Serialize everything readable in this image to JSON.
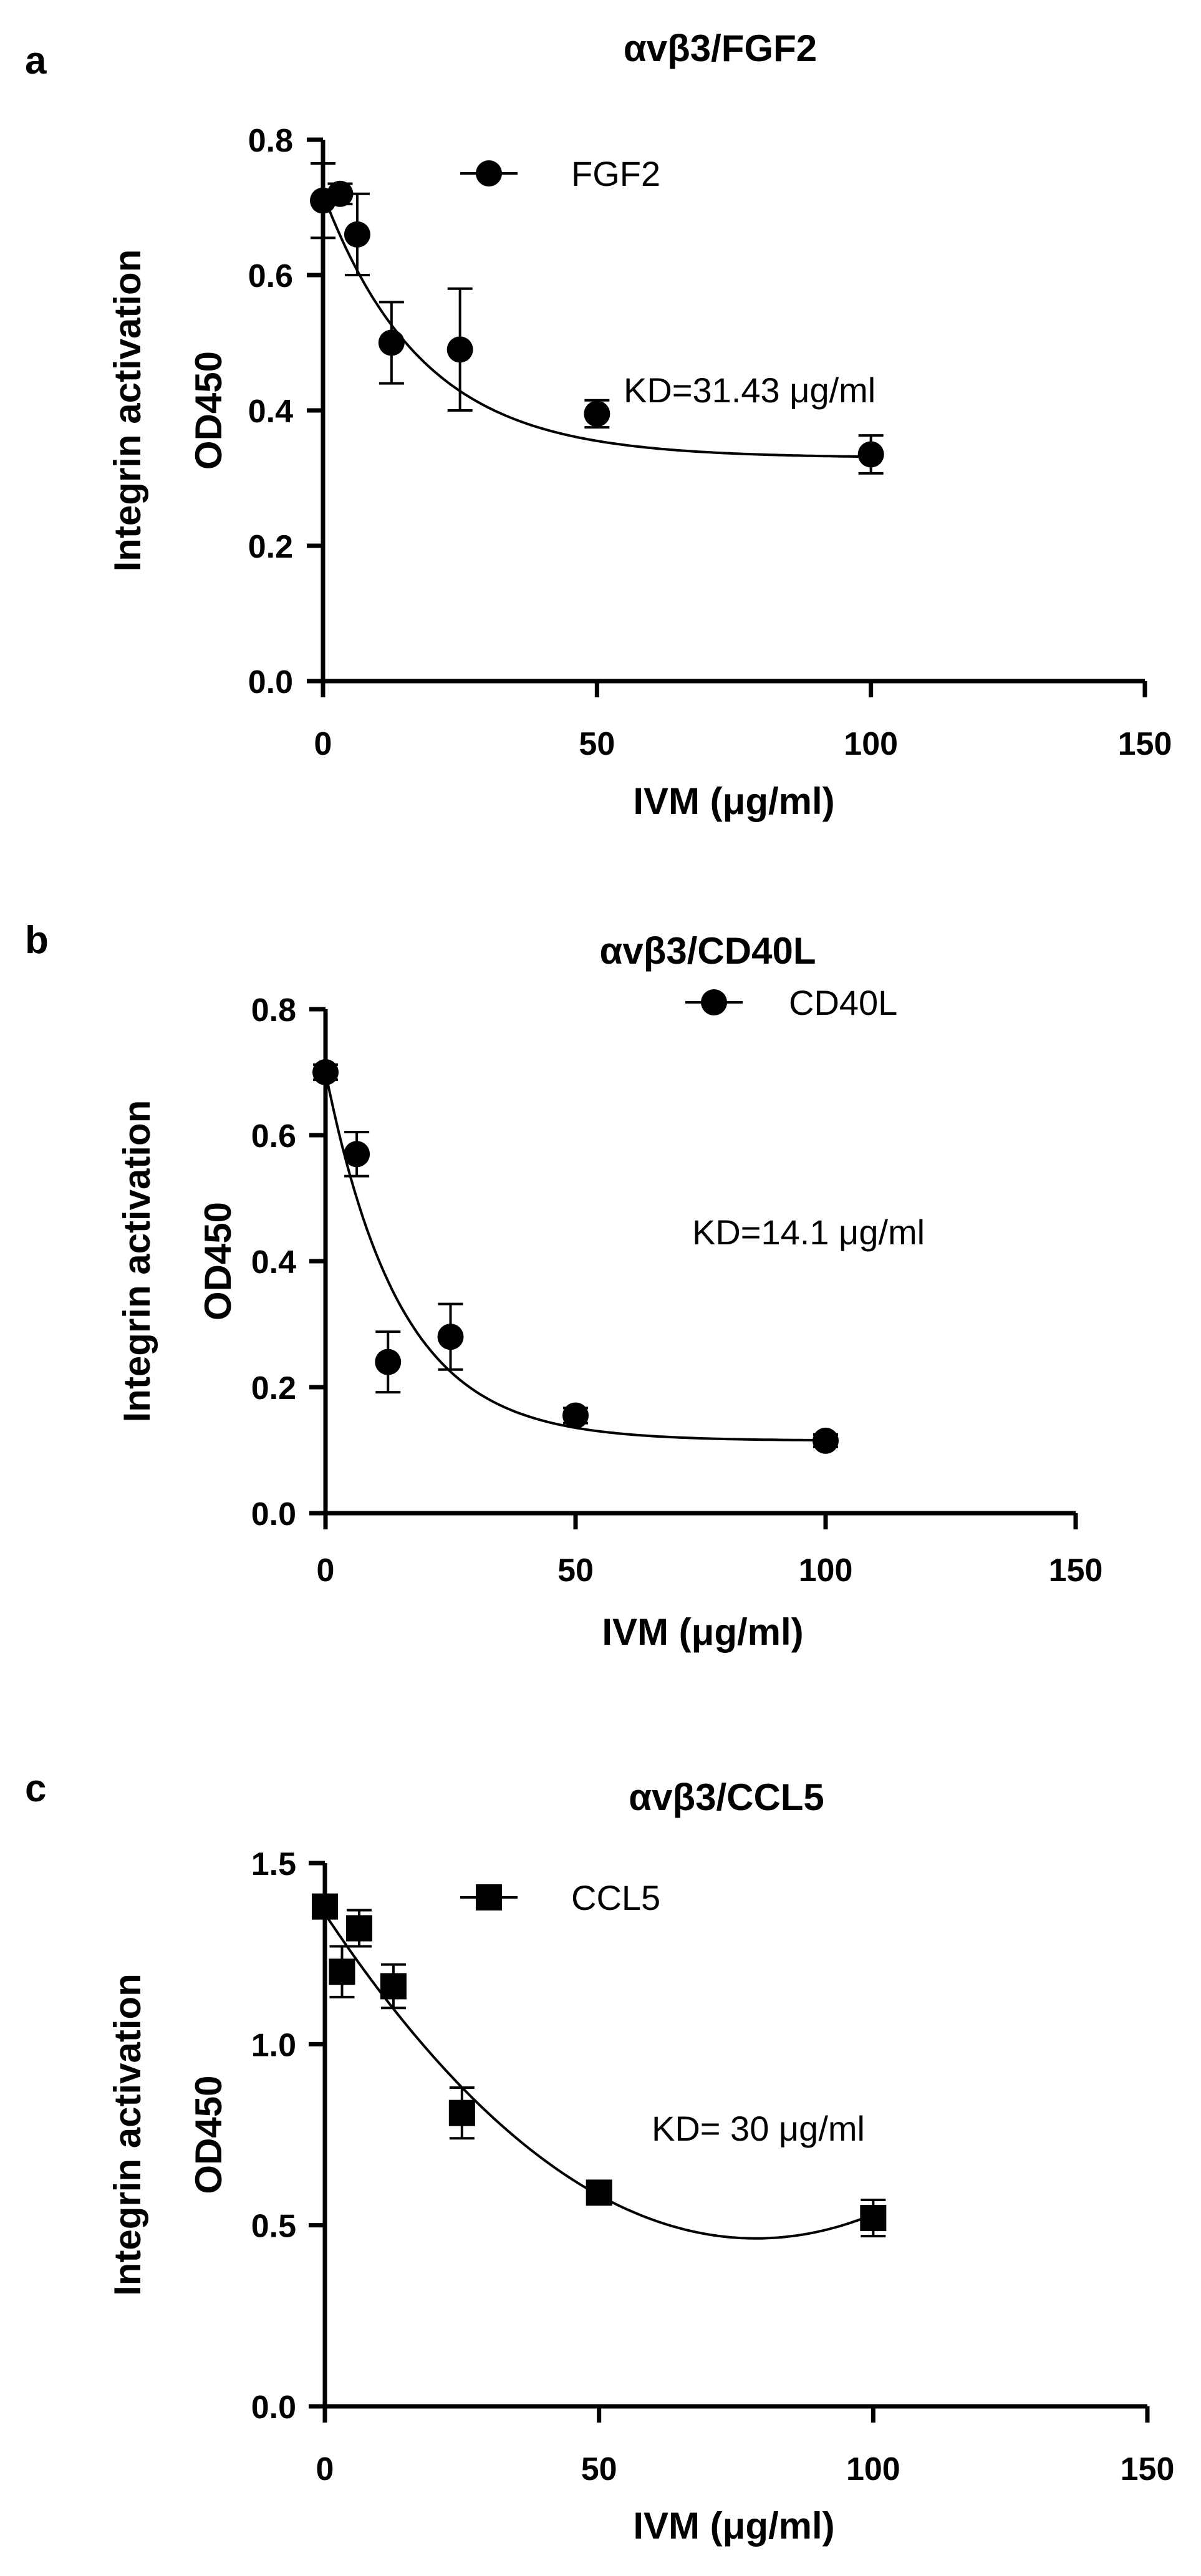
{
  "chart_data": [
    {
      "type": "scatter",
      "panel_label": "a",
      "title": "αvβ3/FGF2",
      "xlabel": "IVM (μg/ml)",
      "ylabel": [
        "Integrin activation",
        "OD450"
      ],
      "xlim": [
        0,
        150
      ],
      "ylim": [
        0,
        0.8
      ],
      "x_ticks": [
        0,
        50,
        100,
        150
      ],
      "y_ticks": [
        0.0,
        0.2,
        0.4,
        0.6,
        0.8
      ],
      "y_tick_labels": [
        "0.0",
        "0.2",
        "0.4",
        "0.6",
        "0.8"
      ],
      "grid": false,
      "legend_position": "top-center",
      "annotation": "KD=31.43 μg/ml",
      "series": [
        {
          "name": "FGF2",
          "marker": "circle",
          "color": "#000000",
          "x": [
            0,
            3.125,
            6.25,
            12.5,
            25,
            50,
            100
          ],
          "y": [
            0.71,
            0.72,
            0.66,
            0.5,
            0.49,
            0.395,
            0.335
          ],
          "error": [
            0.055,
            0.015,
            0.06,
            0.06,
            0.09,
            0.02,
            0.028
          ],
          "fit": {
            "bottom": 0.33,
            "top": 0.72,
            "k": 0.055
          }
        }
      ]
    },
    {
      "type": "scatter",
      "panel_label": "b",
      "title": "αvβ3/CD40L",
      "xlabel": "IVM (μg/ml)",
      "ylabel": [
        "Integrin activation",
        "OD450"
      ],
      "xlim": [
        0,
        150
      ],
      "ylim": [
        0,
        0.8
      ],
      "x_ticks": [
        0,
        50,
        100,
        150
      ],
      "y_ticks": [
        0.0,
        0.2,
        0.4,
        0.6,
        0.8
      ],
      "y_tick_labels": [
        "0.0",
        "0.2",
        "0.4",
        "0.6",
        "0.8"
      ],
      "grid": false,
      "legend_position": "top-center",
      "annotation": "KD=14.1 μg/ml",
      "series": [
        {
          "name": "CD40L",
          "marker": "circle",
          "color": "#000000",
          "x": [
            0,
            6.25,
            12.5,
            25,
            50,
            100
          ],
          "y": [
            0.7,
            0.57,
            0.24,
            0.28,
            0.155,
            0.115
          ],
          "error": [
            0.012,
            0.035,
            0.048,
            0.052,
            0.012,
            0.01
          ],
          "fit": {
            "bottom": 0.115,
            "top": 0.7,
            "k": 0.067
          }
        }
      ]
    },
    {
      "type": "scatter",
      "panel_label": "c",
      "title": "αvβ3/CCL5",
      "xlabel": "IVM (μg/ml)",
      "ylabel": [
        "Integrin activation",
        "OD450"
      ],
      "xlim": [
        0,
        150
      ],
      "ylim": [
        0,
        1.5
      ],
      "x_ticks": [
        0,
        50,
        100,
        150
      ],
      "y_ticks": [
        0.0,
        0.5,
        1.0,
        1.5
      ],
      "y_tick_labels": [
        "0.0",
        "0.5",
        "1.0",
        "1.5"
      ],
      "grid": false,
      "legend_position": "top-center",
      "annotation": "KD= 30 μg/ml",
      "series": [
        {
          "name": "CCL5",
          "marker": "square",
          "color": "#000000",
          "x": [
            0,
            3.125,
            6.25,
            12.5,
            25,
            50,
            100
          ],
          "y": [
            1.38,
            1.2,
            1.32,
            1.16,
            0.81,
            0.59,
            0.52
          ],
          "error": [
            0.03,
            0.07,
            0.05,
            0.06,
            0.07,
            0.025,
            0.05
          ],
          "fit": {
            "poly": [
              1.36,
              -0.0228,
              0.000145
            ]
          }
        }
      ]
    }
  ]
}
